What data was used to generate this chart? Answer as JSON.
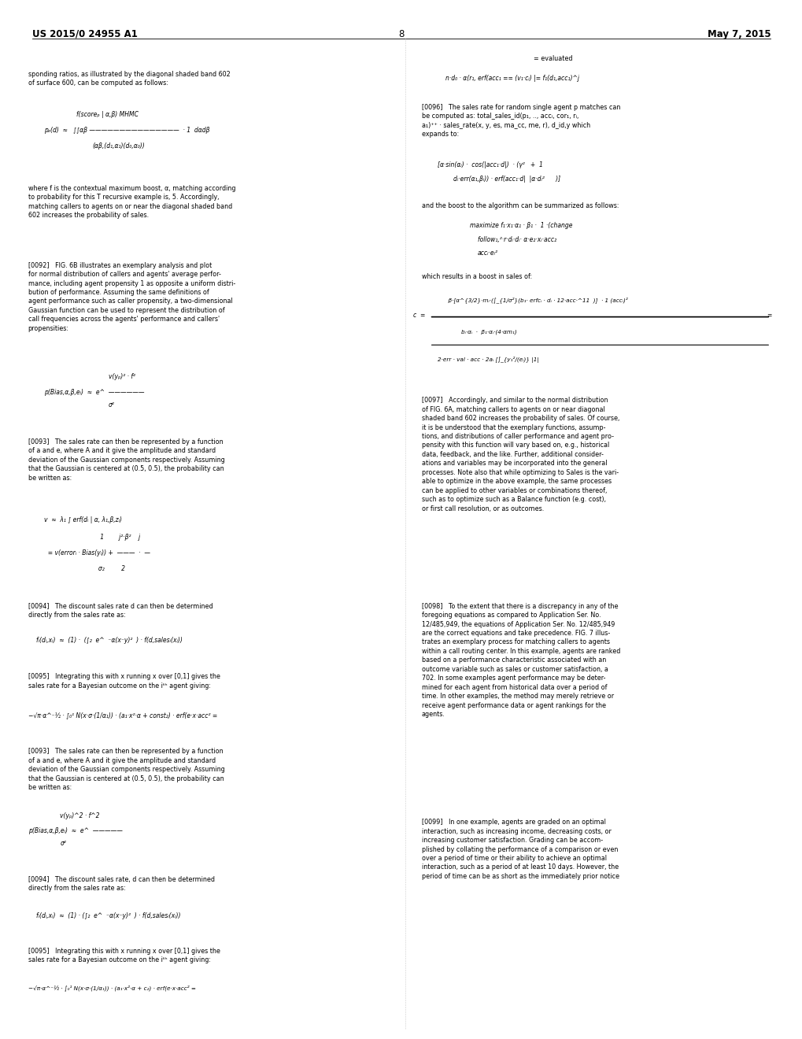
{
  "page_number": "8",
  "patent_number": "US 2015/0 24955 A1",
  "patent_date": "May 7, 2015",
  "background_color": "#ffffff",
  "text_color": "#000000",
  "figsize": [
    10.2,
    13.2
  ],
  "dpi": 100,
  "header_left": "US 2015/0 24955 A1",
  "header_right": "May 7, 2015",
  "header_center": "8"
}
